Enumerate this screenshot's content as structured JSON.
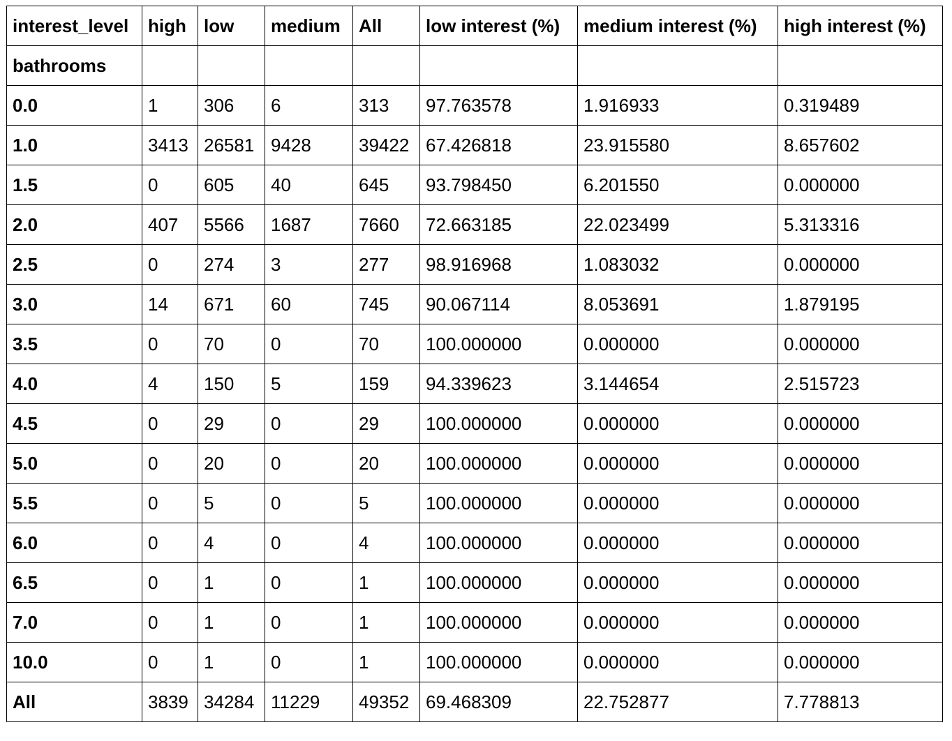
{
  "table": {
    "columns": [
      "interest_level",
      "high",
      "low",
      "medium",
      "All",
      "low interest (%)",
      "medium interest (%)",
      "high interest (%)"
    ],
    "index_name": "bathrooms",
    "rows": [
      {
        "index": "0.0",
        "values": [
          "1",
          "306",
          "6",
          "313",
          "97.763578",
          "1.916933",
          "0.319489"
        ]
      },
      {
        "index": "1.0",
        "values": [
          "3413",
          "26581",
          "9428",
          "39422",
          "67.426818",
          "23.915580",
          "8.657602"
        ]
      },
      {
        "index": "1.5",
        "values": [
          "0",
          "605",
          "40",
          "645",
          "93.798450",
          "6.201550",
          "0.000000"
        ]
      },
      {
        "index": "2.0",
        "values": [
          "407",
          "5566",
          "1687",
          "7660",
          "72.663185",
          "22.023499",
          "5.313316"
        ]
      },
      {
        "index": "2.5",
        "values": [
          "0",
          "274",
          "3",
          "277",
          "98.916968",
          "1.083032",
          "0.000000"
        ]
      },
      {
        "index": "3.0",
        "values": [
          "14",
          "671",
          "60",
          "745",
          "90.067114",
          "8.053691",
          "1.879195"
        ]
      },
      {
        "index": "3.5",
        "values": [
          "0",
          "70",
          "0",
          "70",
          "100.000000",
          "0.000000",
          "0.000000"
        ]
      },
      {
        "index": "4.0",
        "values": [
          "4",
          "150",
          "5",
          "159",
          "94.339623",
          "3.144654",
          "2.515723"
        ]
      },
      {
        "index": "4.5",
        "values": [
          "0",
          "29",
          "0",
          "29",
          "100.000000",
          "0.000000",
          "0.000000"
        ]
      },
      {
        "index": "5.0",
        "values": [
          "0",
          "20",
          "0",
          "20",
          "100.000000",
          "0.000000",
          "0.000000"
        ]
      },
      {
        "index": "5.5",
        "values": [
          "0",
          "5",
          "0",
          "5",
          "100.000000",
          "0.000000",
          "0.000000"
        ]
      },
      {
        "index": "6.0",
        "values": [
          "0",
          "4",
          "0",
          "4",
          "100.000000",
          "0.000000",
          "0.000000"
        ]
      },
      {
        "index": "6.5",
        "values": [
          "0",
          "1",
          "0",
          "1",
          "100.000000",
          "0.000000",
          "0.000000"
        ]
      },
      {
        "index": "7.0",
        "values": [
          "0",
          "1",
          "0",
          "1",
          "100.000000",
          "0.000000",
          "0.000000"
        ]
      },
      {
        "index": "10.0",
        "values": [
          "0",
          "1",
          "0",
          "1",
          "100.000000",
          "0.000000",
          "0.000000"
        ]
      },
      {
        "index": "All",
        "values": [
          "3839",
          "34284",
          "11229",
          "49352",
          "69.468309",
          "22.752877",
          "7.778813"
        ]
      }
    ]
  }
}
